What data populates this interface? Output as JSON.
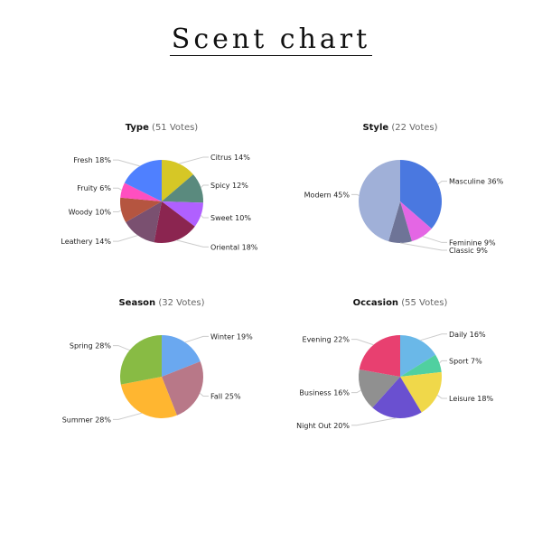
{
  "title": "Scent chart",
  "chart_data": [
    {
      "type": "pie",
      "title": "Type",
      "votes_label": "(51 Votes)",
      "labels": [
        "Citrus",
        "Spicy",
        "Sweet",
        "Oriental",
        "Leathery",
        "Woody",
        "Fruity",
        "Fresh"
      ],
      "values": [
        14,
        12,
        10,
        18,
        14,
        10,
        6,
        18
      ],
      "colors": [
        "#d6c726",
        "#5a8a7e",
        "#b060ff",
        "#8b2550",
        "#7a5070",
        "#b55540",
        "#ff4fc0",
        "#4f80ff"
      ]
    },
    {
      "type": "pie",
      "title": "Style",
      "votes_label": "(22 Votes)",
      "labels": [
        "Masculine",
        "Feminine",
        "Classic",
        "Modern"
      ],
      "values": [
        36,
        9,
        9,
        45
      ],
      "colors": [
        "#4a78e0",
        "#e466e4",
        "#6e7497",
        "#a0b0d8"
      ]
    },
    {
      "type": "pie",
      "title": "Season",
      "votes_label": "(32 Votes)",
      "labels": [
        "Winter",
        "Fall",
        "Summer",
        "Spring"
      ],
      "values": [
        19,
        25,
        28,
        28
      ],
      "colors": [
        "#6aa8f0",
        "#b87888",
        "#ffb630",
        "#88bb44"
      ]
    },
    {
      "type": "pie",
      "title": "Occasion",
      "votes_label": "(55 Votes)",
      "labels": [
        "Daily",
        "Sport",
        "Leisure",
        "Night Out",
        "Business",
        "Evening"
      ],
      "values": [
        16,
        7,
        18,
        20,
        16,
        22
      ],
      "colors": [
        "#6ab8e8",
        "#50d0a0",
        "#f0d84a",
        "#6a50d0",
        "#909090",
        "#e84070"
      ]
    }
  ]
}
